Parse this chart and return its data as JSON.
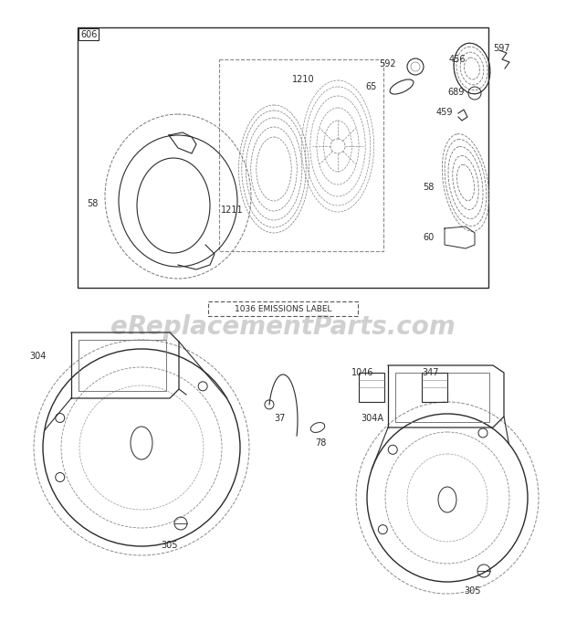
{
  "bg_color": "#ffffff",
  "line_color": "#2a2a2a",
  "dashed_color": "#666666",
  "watermark_text": "eReplacementParts.com",
  "watermark_color": "#d0d0d0",
  "watermark_fontsize": 20,
  "emissions_label": "1036 EMISSIONS LABEL",
  "fig_w": 6.2,
  "fig_h": 6.93,
  "dpi": 100
}
